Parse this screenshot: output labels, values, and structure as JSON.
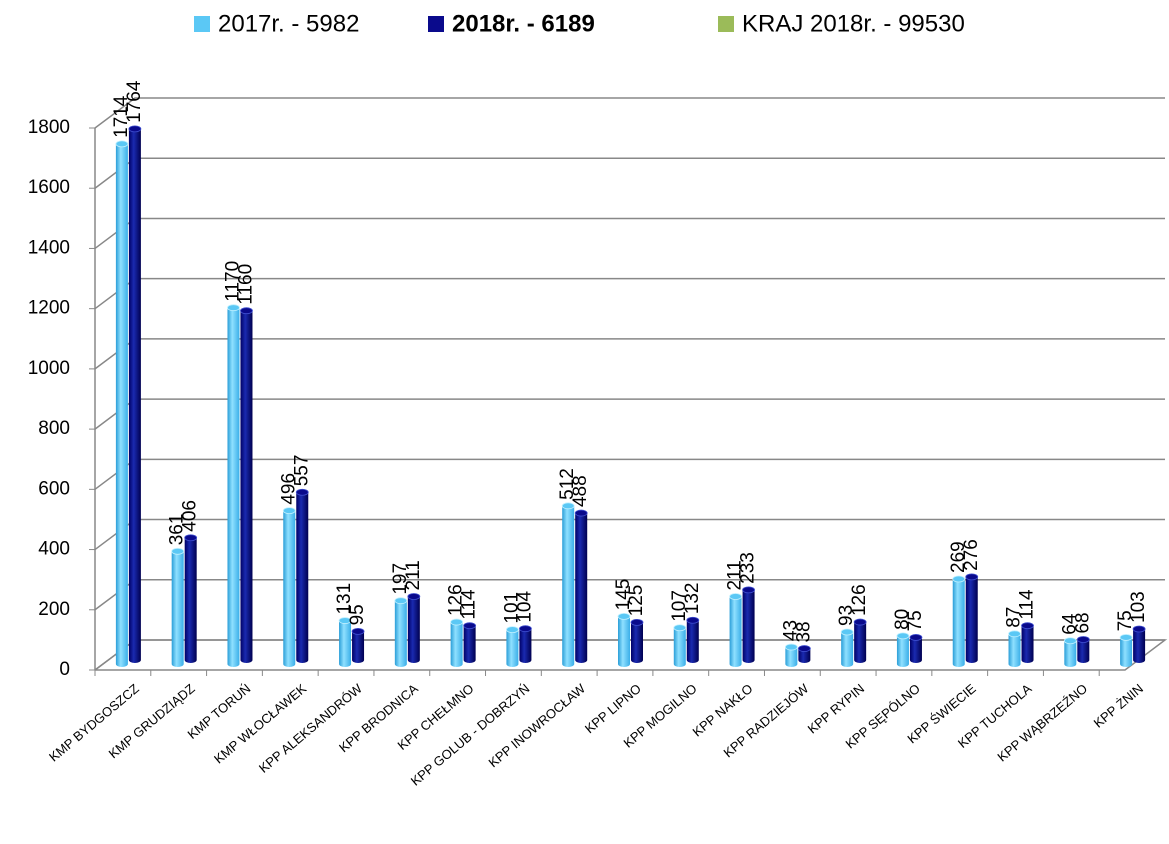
{
  "chart_data": {
    "type": "bar3d",
    "categories": [
      "KMP  BYDGOSZCZ",
      "KMP  GRUDZIĄDZ",
      "KMP  TORUŃ",
      "KMP  WŁOCŁAWEK",
      "KPP  ALEKSANDRÓW",
      "KPP  BRODNICA",
      "KPP  CHEŁMNO",
      "KPP  GOLUB - DOBRZYŃ",
      "KPP  INOWROCŁAW",
      "KPP  LIPNO",
      "KPP  MOGILNO",
      "KPP  NAKŁO",
      "KPP  RADZIEJÓW",
      "KPP  RYPIN",
      "KPP  SĘPÓLNO",
      "KPP  ŚWIECIE",
      "KPP  TUCHOLA",
      "KPP  WĄBRZEŹNO",
      "KPP  ŻNIN"
    ],
    "series": [
      {
        "name": "2017r. - 5982",
        "color": "#5bc8f5",
        "values": [
          1714,
          361,
          1170,
          496,
          131,
          197,
          126,
          101,
          512,
          145,
          107,
          211,
          43,
          93,
          80,
          269,
          87,
          64,
          75
        ]
      },
      {
        "name": "2018r. - 6189",
        "color": "#0a0a8c",
        "bold": true,
        "values": [
          1764,
          406,
          1160,
          557,
          95,
          211,
          114,
          104,
          488,
          125,
          132,
          233,
          38,
          126,
          75,
          276,
          114,
          68,
          103
        ]
      },
      {
        "name": "KRAJ  2018r. - 99530",
        "color": "#9bbb59",
        "values": [
          null,
          null,
          null,
          null,
          null,
          null,
          null,
          null,
          null,
          null,
          null,
          null,
          null,
          null,
          null,
          null,
          null,
          null,
          null
        ]
      }
    ],
    "ylim": [
      0,
      1800
    ],
    "yticks": [
      0,
      200,
      400,
      600,
      800,
      1000,
      1200,
      1400,
      1600,
      1800
    ],
    "grid": true
  }
}
